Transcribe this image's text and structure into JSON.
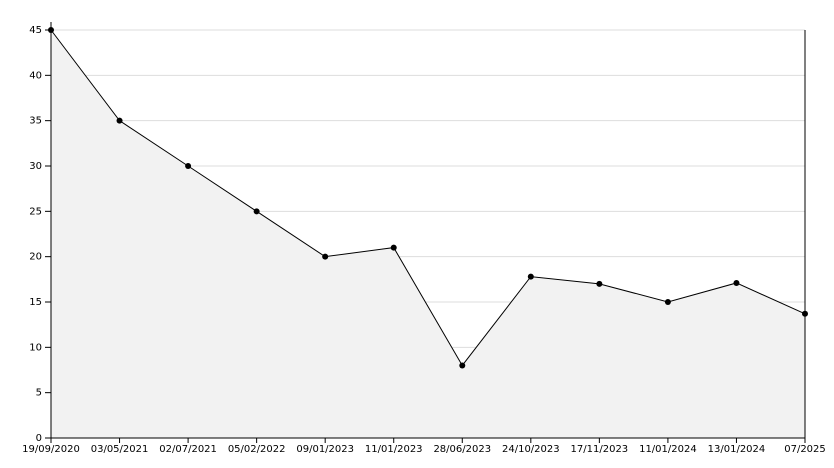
{
  "chart_data": {
    "type": "area",
    "categories": [
      "19/09/2020",
      "03/05/2021",
      "02/07/2021",
      "05/02/2022",
      "09/01/2023",
      "11/01/2023",
      "28/06/2023",
      "24/10/2023",
      "17/11/2023",
      "11/01/2024",
      "13/01/2024",
      "07/2025"
    ],
    "values": [
      45,
      35,
      30,
      25,
      20,
      21,
      8,
      17.8,
      17,
      15,
      17.1,
      13.7
    ],
    "color": "#000000",
    "fill": "#f2f2f2",
    "ylim": [
      0,
      45
    ],
    "yticks": [
      0,
      5,
      10,
      15,
      20,
      25,
      30,
      35,
      40,
      45
    ],
    "grid": true
  }
}
